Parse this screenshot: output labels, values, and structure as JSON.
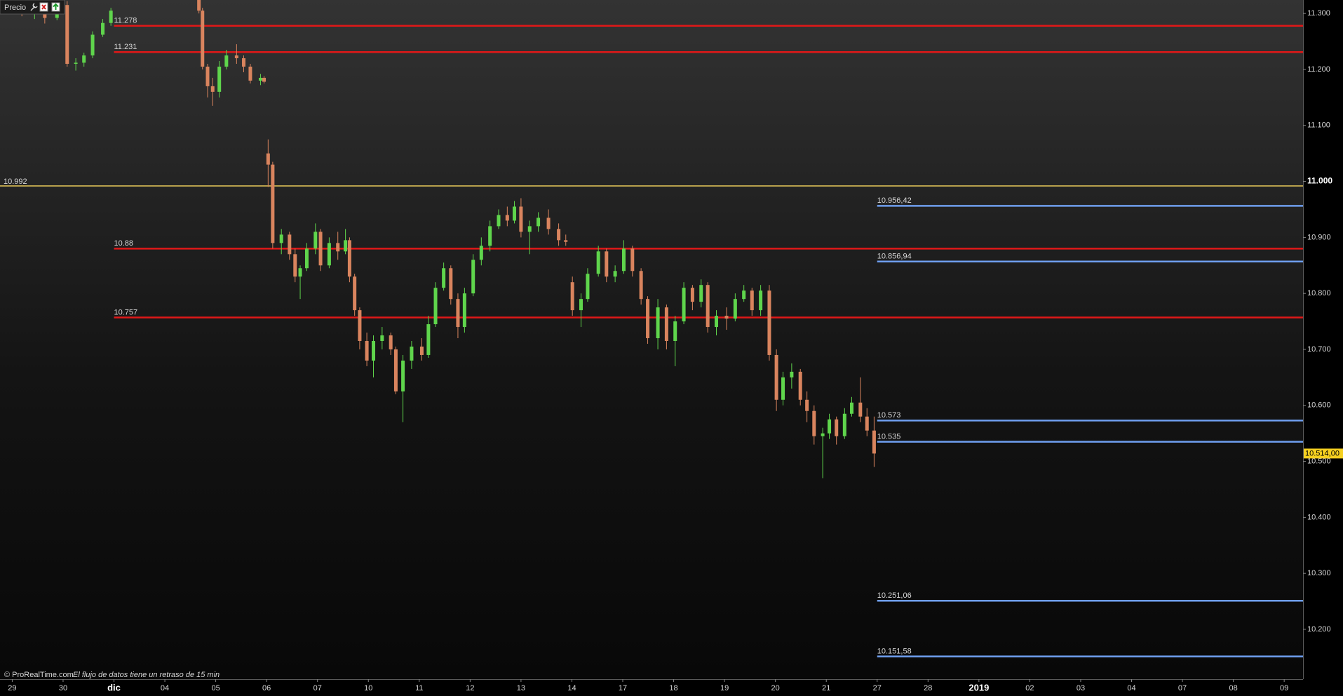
{
  "chart_data": {
    "type": "candlestick",
    "panel_label": "Precio",
    "source": "© ProRealTime.com",
    "note": "El flujo de datos tiene un retraso de 15 min",
    "up_color": "#5fd54c",
    "down_color": "#d9845e",
    "xlim": [
      -0.24,
      25.37
    ],
    "ylim": [
      10.111,
      11.324
    ],
    "xticks": [
      {
        "value": 0,
        "label": "29"
      },
      {
        "value": 1,
        "label": "30"
      },
      {
        "value": 2,
        "label": "dic",
        "bold": true
      },
      {
        "value": 3,
        "label": "04"
      },
      {
        "value": 4,
        "label": "05"
      },
      {
        "value": 5,
        "label": "06"
      },
      {
        "value": 6,
        "label": "07"
      },
      {
        "value": 7,
        "label": "10"
      },
      {
        "value": 8,
        "label": "11"
      },
      {
        "value": 9,
        "label": "12"
      },
      {
        "value": 10,
        "label": "13"
      },
      {
        "value": 11,
        "label": "14"
      },
      {
        "value": 12,
        "label": "17"
      },
      {
        "value": 13,
        "label": "18"
      },
      {
        "value": 14,
        "label": "19"
      },
      {
        "value": 15,
        "label": "20"
      },
      {
        "value": 16,
        "label": "21"
      },
      {
        "value": 17,
        "label": "27"
      },
      {
        "value": 18,
        "label": "28"
      },
      {
        "value": 19,
        "label": "2019",
        "bold": true
      },
      {
        "value": 20,
        "label": "02"
      },
      {
        "value": 21,
        "label": "03"
      },
      {
        "value": 22,
        "label": "04"
      },
      {
        "value": 23,
        "label": "07"
      },
      {
        "value": 24,
        "label": "08"
      },
      {
        "value": 25,
        "label": "09"
      }
    ],
    "yticks": [
      {
        "value": 11.3,
        "label": "11.300"
      },
      {
        "value": 11.2,
        "label": "11.200"
      },
      {
        "value": 11.1,
        "label": "11.100"
      },
      {
        "value": 11.0,
        "label": "11.000",
        "bold": true
      },
      {
        "value": 10.9,
        "label": "10.900"
      },
      {
        "value": 10.8,
        "label": "10.800"
      },
      {
        "value": 10.7,
        "label": "10.700"
      },
      {
        "value": 10.6,
        "label": "10.600"
      },
      {
        "value": 10.5,
        "label": "10.500"
      },
      {
        "value": 10.4,
        "label": "10.400"
      },
      {
        "value": 10.3,
        "label": "10.300"
      },
      {
        "value": 10.2,
        "label": "10.200"
      }
    ],
    "last_price": {
      "value": 10.514,
      "label": "10.514,00",
      "color": "#f5d020"
    },
    "pivot_line": {
      "value": 10.992,
      "color": "#e8c95a"
    },
    "red_lines": {
      "color": "#e01818",
      "values": [
        11.278,
        11.231,
        10.88,
        10.757
      ]
    },
    "blue_lines": {
      "color": "#6f9ff0",
      "values": [
        10.95642,
        10.85694,
        10.573,
        10.535,
        10.25106,
        10.15158
      ],
      "value_labels": [
        "10.956,42",
        "10.856,94",
        "10.573",
        "10.535",
        "10.251,06",
        "10.151,58"
      ]
    },
    "x": [
      0.19,
      0.44,
      0.64,
      0.88,
      1.08,
      1.25,
      1.41,
      1.58,
      1.78,
      1.94,
      3.67,
      3.74,
      3.84,
      3.94,
      4.07,
      4.21,
      4.41,
      4.55,
      4.68,
      4.88,
      4.95,
      5.03,
      5.12,
      5.29,
      5.45,
      5.56,
      5.66,
      5.79,
      5.96,
      6.06,
      6.23,
      6.4,
      6.55,
      6.63,
      6.73,
      6.83,
      6.97,
      7.1,
      7.27,
      7.44,
      7.54,
      7.68,
      7.85,
      8.05,
      8.18,
      8.32,
      8.48,
      8.62,
      8.76,
      8.89,
      9.06,
      9.22,
      9.39,
      9.56,
      9.73,
      9.87,
      10.0,
      10.17,
      10.34,
      10.54,
      10.74,
      10.88,
      11.01,
      11.18,
      11.31,
      11.52,
      11.68,
      11.85,
      12.02,
      12.19,
      12.36,
      12.49,
      12.69,
      12.86,
      13.03,
      13.2,
      13.37,
      13.54,
      13.67,
      13.84,
      14.04,
      14.21,
      14.38,
      14.54,
      14.71,
      14.88,
      15.02,
      15.15,
      15.32,
      15.49,
      15.62,
      15.76,
      15.93,
      16.06,
      16.2,
      16.36,
      16.5,
      16.67,
      16.8,
      16.94
    ],
    "open": [
      11.305,
      11.3,
      11.308,
      11.292,
      11.315,
      11.21,
      11.212,
      11.225,
      11.262,
      11.283,
      11.324,
      11.305,
      11.205,
      11.17,
      11.16,
      11.205,
      11.225,
      11.22,
      11.205,
      11.18,
      11.185,
      11.05,
      11.03,
      10.89,
      10.905,
      10.87,
      10.83,
      10.845,
      10.88,
      10.91,
      10.85,
      10.89,
      10.875,
      10.895,
      10.83,
      10.77,
      10.715,
      10.68,
      10.715,
      10.725,
      10.7,
      10.625,
      10.68,
      10.705,
      10.69,
      10.745,
      10.81,
      10.845,
      10.79,
      10.74,
      10.8,
      10.86,
      10.885,
      10.92,
      10.94,
      10.93,
      10.955,
      10.91,
      10.92,
      10.935,
      10.915,
      10.895,
      10.82,
      10.77,
      10.79,
      10.835,
      10.875,
      10.83,
      10.84,
      10.88,
      10.84,
      10.79,
      10.72,
      10.775,
      10.715,
      10.75,
      10.81,
      10.785,
      10.815,
      10.74,
      10.76,
      10.755,
      10.79,
      10.805,
      10.77,
      10.805,
      10.69,
      10.61,
      10.65,
      10.66,
      10.61,
      10.59,
      10.545,
      10.55,
      10.575,
      10.545,
      10.585,
      10.605,
      10.58,
      10.555
    ],
    "high": [
      11.318,
      11.312,
      11.315,
      11.322,
      11.322,
      11.22,
      11.23,
      11.268,
      11.29,
      11.31,
      11.33,
      11.31,
      11.21,
      11.185,
      11.215,
      11.235,
      11.245,
      11.225,
      11.21,
      11.192,
      11.188,
      11.075,
      11.035,
      10.915,
      10.91,
      10.88,
      10.85,
      10.89,
      10.925,
      10.915,
      10.9,
      10.91,
      10.915,
      10.9,
      10.835,
      10.775,
      10.73,
      10.725,
      10.74,
      10.73,
      10.705,
      10.69,
      10.715,
      10.72,
      10.76,
      10.82,
      10.855,
      10.85,
      10.8,
      10.81,
      10.87,
      10.9,
      10.93,
      10.95,
      10.955,
      10.965,
      10.97,
      10.93,
      10.945,
      10.95,
      10.925,
      10.905,
      10.83,
      10.8,
      10.845,
      10.885,
      10.88,
      10.85,
      10.895,
      10.885,
      10.845,
      10.795,
      10.79,
      10.78,
      10.76,
      10.82,
      10.815,
      10.825,
      10.82,
      10.77,
      10.775,
      10.8,
      10.815,
      10.81,
      10.815,
      10.815,
      10.7,
      10.66,
      10.675,
      10.665,
      10.625,
      10.6,
      10.56,
      10.585,
      10.58,
      10.595,
      10.615,
      10.65,
      10.595,
      10.58
    ],
    "low": [
      11.295,
      11.29,
      11.282,
      11.288,
      11.205,
      11.198,
      11.205,
      11.22,
      11.258,
      11.278,
      11.3,
      11.2,
      11.15,
      11.135,
      11.15,
      11.2,
      11.21,
      11.195,
      11.175,
      11.172,
      11.175,
      10.99,
      10.88,
      10.87,
      10.86,
      10.82,
      10.79,
      10.84,
      10.87,
      10.84,
      10.845,
      10.86,
      10.87,
      10.82,
      10.76,
      10.7,
      10.67,
      10.65,
      10.7,
      10.69,
      10.62,
      10.57,
      10.665,
      10.68,
      10.685,
      10.74,
      10.805,
      10.78,
      10.72,
      10.73,
      10.795,
      10.85,
      10.875,
      10.915,
      10.92,
      10.925,
      10.9,
      10.87,
      10.91,
      10.905,
      10.885,
      10.885,
      10.76,
      10.74,
      10.785,
      10.83,
      10.82,
      10.82,
      10.835,
      10.83,
      10.78,
      10.71,
      10.7,
      10.7,
      10.67,
      10.745,
      10.77,
      10.775,
      10.73,
      10.725,
      10.735,
      10.75,
      10.785,
      10.76,
      10.76,
      10.68,
      10.59,
      10.6,
      10.63,
      10.6,
      10.57,
      10.53,
      10.47,
      10.54,
      10.53,
      10.54,
      10.58,
      10.57,
      10.545,
      10.49
    ],
    "close": [
      11.3,
      11.308,
      11.292,
      11.315,
      11.21,
      11.212,
      11.225,
      11.262,
      11.283,
      11.305,
      11.305,
      11.205,
      11.17,
      11.16,
      11.205,
      11.225,
      11.22,
      11.205,
      11.18,
      11.185,
      11.178,
      11.03,
      10.89,
      10.905,
      10.87,
      10.83,
      10.845,
      10.88,
      10.91,
      10.85,
      10.89,
      10.875,
      10.895,
      10.83,
      10.77,
      10.715,
      10.68,
      10.715,
      10.725,
      10.7,
      10.625,
      10.68,
      10.705,
      10.69,
      10.745,
      10.81,
      10.845,
      10.79,
      10.74,
      10.8,
      10.86,
      10.885,
      10.92,
      10.94,
      10.93,
      10.955,
      10.91,
      10.92,
      10.935,
      10.915,
      10.895,
      10.892,
      10.77,
      10.79,
      10.835,
      10.875,
      10.83,
      10.84,
      10.88,
      10.84,
      10.79,
      10.72,
      10.775,
      10.715,
      10.75,
      10.81,
      10.785,
      10.815,
      10.74,
      10.76,
      10.755,
      10.79,
      10.805,
      10.77,
      10.805,
      10.69,
      10.61,
      10.65,
      10.66,
      10.61,
      10.59,
      10.545,
      10.55,
      10.575,
      10.545,
      10.585,
      10.605,
      10.58,
      10.555,
      10.514
    ]
  }
}
